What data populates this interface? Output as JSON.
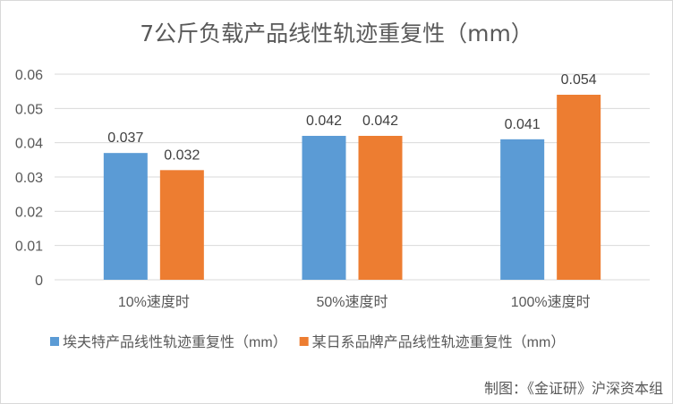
{
  "chart_data": {
    "type": "bar",
    "title": "7公斤负载产品线性轨迹重复性（mm）",
    "categories": [
      "10%速度时",
      "50%速度时",
      "100%速度时"
    ],
    "series": [
      {
        "name": "埃夫特产品线性轨迹重复性（mm）",
        "values": [
          0.037,
          0.042,
          0.041
        ],
        "labels": [
          "0.037",
          "0.042",
          "0.041"
        ],
        "color": "#5B9BD5"
      },
      {
        "name": "某日系品牌产品线性轨迹重复性（mm）",
        "values": [
          0.032,
          0.042,
          0.054
        ],
        "labels": [
          "0.032",
          "0.042",
          "0.054"
        ],
        "color": "#ED7D31"
      }
    ],
    "ylim": [
      0,
      0.06
    ],
    "yticks": [
      "0",
      "0.01",
      "0.02",
      "0.03",
      "0.04",
      "0.05",
      "0.06"
    ],
    "grid": true,
    "legend": "bottom"
  },
  "credit": "制图：《金证研》沪深资本组"
}
